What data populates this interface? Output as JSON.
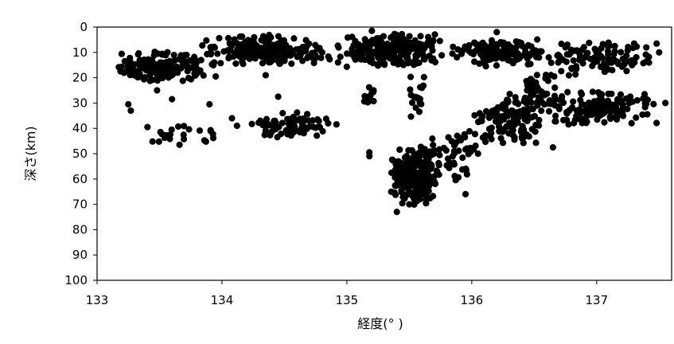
{
  "chart_data": {
    "type": "scatter",
    "xlabel": "経度(° )",
    "ylabel": "深さ(km)",
    "xlim": [
      133,
      137.6
    ],
    "ylim": [
      0,
      100
    ],
    "y_inverted": true,
    "x_ticks": [
      133,
      134,
      135,
      136,
      137
    ],
    "y_ticks": [
      0,
      10,
      20,
      30,
      40,
      50,
      60,
      70,
      80,
      90,
      100
    ],
    "grid": false,
    "legend": "none",
    "marker_color": "#000000",
    "clusters": [
      {
        "x_range": [
          133.1,
          133.95
        ],
        "y_range": [
          9,
          22
        ],
        "count": 160
      },
      {
        "x_range": [
          133.8,
          134.9
        ],
        "y_range": [
          3,
          16
        ],
        "count": 220
      },
      {
        "x_range": [
          134.9,
          135.8
        ],
        "y_range": [
          2,
          16
        ],
        "count": 220
      },
      {
        "x_range": [
          135.8,
          136.6
        ],
        "y_range": [
          3,
          16
        ],
        "count": 140
      },
      {
        "x_range": [
          136.5,
          137.5
        ],
        "y_range": [
          5,
          20
        ],
        "count": 110
      },
      {
        "x_range": [
          133.3,
          134.05
        ],
        "y_range": [
          38,
          46
        ],
        "count": 22
      },
      {
        "x_range": [
          134.2,
          134.95
        ],
        "y_range": [
          33,
          44
        ],
        "count": 75
      },
      {
        "x_range": [
          135.35,
          135.75
        ],
        "y_range": [
          46,
          72
        ],
        "count": 230
      },
      {
        "x_range": [
          135.6,
          136.1
        ],
        "y_range": [
          38,
          62
        ],
        "count": 45
      },
      {
        "x_range": [
          136.0,
          136.6
        ],
        "y_range": [
          26,
          48
        ],
        "count": 120
      },
      {
        "x_range": [
          136.5,
          137.5
        ],
        "y_range": [
          24,
          40
        ],
        "count": 160
      },
      {
        "x_range": [
          136.3,
          136.7
        ],
        "y_range": [
          18,
          32
        ],
        "count": 40
      },
      {
        "x_range": [
          135.1,
          135.25
        ],
        "y_range": [
          22,
          32
        ],
        "count": 12
      },
      {
        "x_range": [
          135.45,
          135.7
        ],
        "y_range": [
          17,
          40
        ],
        "count": 18
      }
    ],
    "points": [
      [
        133.25,
        30.5
      ],
      [
        133.27,
        33
      ],
      [
        133.48,
        25
      ],
      [
        133.6,
        28.5
      ],
      [
        133.66,
        46.5
      ],
      [
        133.9,
        30.5
      ],
      [
        134.08,
        36
      ],
      [
        134.12,
        39
      ],
      [
        134.45,
        27.5
      ],
      [
        134.85,
        38
      ],
      [
        135.18,
        49.5
      ],
      [
        135.18,
        51
      ],
      [
        135.4,
        73
      ],
      [
        135.5,
        70
      ],
      [
        135.95,
        66
      ],
      [
        136.05,
        50
      ],
      [
        136.65,
        47.5
      ],
      [
        137.3,
        6.5
      ],
      [
        137.48,
        6.5
      ],
      [
        137.5,
        10
      ],
      [
        134.35,
        19
      ],
      [
        133.95,
        19.5
      ],
      [
        136.2,
        2
      ],
      [
        135.2,
        1.5
      ],
      [
        137.55,
        30
      ]
    ]
  }
}
